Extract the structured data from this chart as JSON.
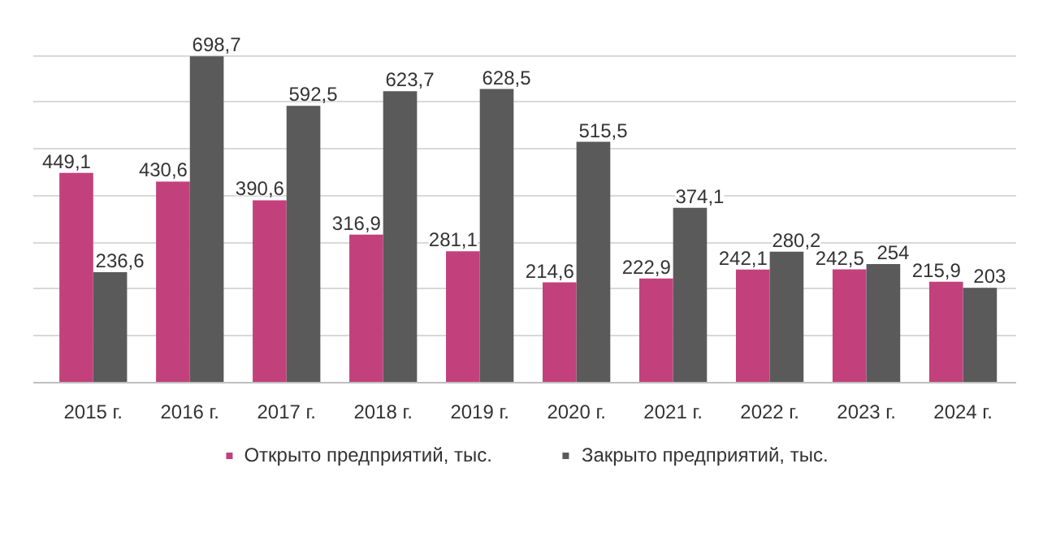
{
  "chart_data": {
    "type": "bar",
    "categories": [
      "2015 г.",
      "2016 г.",
      "2017 г.",
      "2018 г.",
      "2019 г.",
      "2020 г.",
      "2021 г.",
      "2022 г.",
      "2023 г.",
      "2024 г."
    ],
    "series": [
      {
        "name": "Открыто предприятий, тыс.",
        "color": "#c2417c",
        "values": [
          449.1,
          430.6,
          390.6,
          316.9,
          281.1,
          214.6,
          222.9,
          242.1,
          242.5,
          215.9
        ],
        "value_labels": [
          "449,1",
          "430,6",
          "390,6",
          "316,9",
          "281,1",
          "214,6",
          "222,9",
          "242,1",
          "242,5",
          "215,9"
        ]
      },
      {
        "name": "Закрыто предприятий, тыс.",
        "color": "#5a5a5a",
        "values": [
          236.6,
          698.7,
          592.5,
          623.7,
          628.5,
          515.5,
          374.1,
          280.2,
          254,
          203
        ],
        "value_labels": [
          "236,6",
          "698,7",
          "592,5",
          "623,7",
          "628,5",
          "515,5",
          "374,1",
          "280,2",
          "254",
          "203"
        ]
      }
    ],
    "yticks": [
      {
        "value": 0,
        "label": null
      },
      {
        "value": 100,
        "label": null
      },
      {
        "value": 200,
        "label": null
      },
      {
        "value": 300,
        "label": null
      },
      {
        "value": 400,
        "label": null
      },
      {
        "value": 500,
        "label": null
      },
      {
        "value": 600,
        "label": null
      },
      {
        "value": 700,
        "label": null
      }
    ],
    "grid": "y",
    "legend": "bottom",
    "tick_labels": "x"
  }
}
